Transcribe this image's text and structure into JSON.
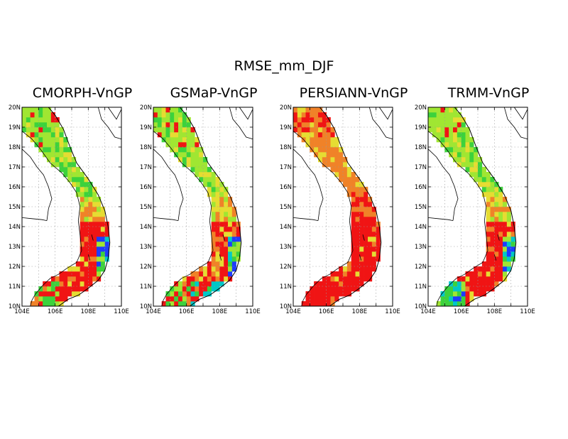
{
  "figure": {
    "title": "RMSE_mm_DJF"
  },
  "panels": [
    {
      "title": "CMORPH-VnGP",
      "scheme": "cmorph"
    },
    {
      "title": "GSMaP-VnGP",
      "scheme": "gsmap"
    },
    {
      "title": "PERSIANN-VnGP",
      "scheme": "persiann"
    },
    {
      "title": "TRMM-VnGP",
      "scheme": "trmm"
    }
  ],
  "axes": {
    "lon_ticks": [
      "104E",
      "106E",
      "108E",
      "110E"
    ],
    "lat_ticks": [
      "10N",
      "11N",
      "12N",
      "13N",
      "14N",
      "15N",
      "16N",
      "17N",
      "18N",
      "19N",
      "20N"
    ],
    "lon_range": [
      104,
      110
    ],
    "lat_range": [
      10,
      20
    ],
    "grid": "dotted"
  },
  "colors": {
    "red": "#f01414",
    "orange": "#f08228",
    "yellow": "#e6dc32",
    "yellowgreen": "#a0e632",
    "green": "#3cd23c",
    "cyan": "#00c8c8",
    "blue": "#1e3cff",
    "coast": "#000000"
  }
}
